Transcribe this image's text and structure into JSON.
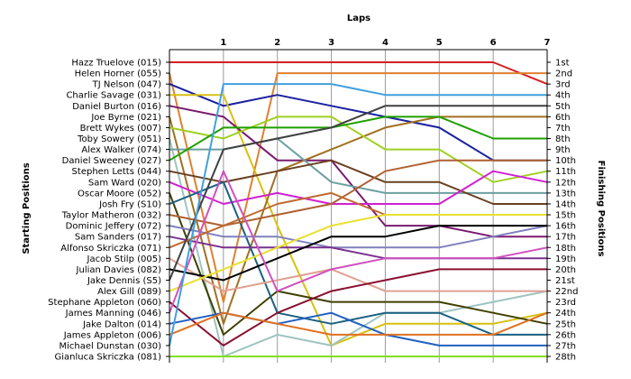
{
  "chart_data": {
    "type": "line",
    "title": "",
    "xlabel": "Laps",
    "ylabel_left": "Starting Positions",
    "ylabel_right": "Finishing Positions",
    "x_ticks": [
      "1",
      "2",
      "3",
      "4",
      "5",
      "6",
      "7"
    ],
    "xlim": [
      0,
      7
    ],
    "ylim": [
      1,
      28
    ],
    "starting_labels": [
      "Hazz Truelove (015)",
      "Helen Horner (055)",
      "TJ Nelson (047)",
      "Charlie Savage (031)",
      "Daniel Burton (016)",
      "Joe Byrne (021)",
      "Brett Wykes (007)",
      "Toby Sowery (051)",
      "Alex Walker (074)",
      "Daniel Sweeney (027)",
      "Stephen Letts (044)",
      "Sam Ward (020)",
      "Oscar Moore (052)",
      "Josh Fry (S10)",
      "Taylor Matheron (032)",
      "Dominic Jeffery (072)",
      "Sam Sanders (017)",
      "Alfonso Skriczka (071)",
      "Jacob Stilp (005)",
      "Julian Davies (082)",
      "Jake Dennis (S5)",
      "Alex Gill (089)",
      "Stephane Appleton (060)",
      "James Manning (046)",
      "Jake Dalton (014)",
      "James Appleton (006)",
      "Michael Dunstan (030)",
      "Gianluca Skriczka (081)"
    ],
    "finishing_labels": [
      "1st",
      "2nd",
      "3rd",
      "4th",
      "5th",
      "6th",
      "7th",
      "8th",
      "9th",
      "10th",
      "11th",
      "12th",
      "13th",
      "14th",
      "15th",
      "16th",
      "17th",
      "18th",
      "19th",
      "20th",
      "21st",
      "22nd",
      "23rd",
      "24th",
      "25th",
      "26th",
      "27th",
      "28th"
    ],
    "grid": true,
    "series": [
      {
        "color": "#d42020",
        "positions": [
          1,
          1,
          1,
          1,
          1,
          1,
          1,
          3
        ]
      },
      {
        "color": "#e08030",
        "positions": [
          2,
          23,
          2,
          2,
          2,
          2,
          2,
          2
        ]
      },
      {
        "color": "#1a20a0",
        "positions": [
          3,
          5,
          4,
          5,
          6,
          7,
          10,
          10
        ]
      },
      {
        "color": "#d8c010",
        "positions": [
          4,
          4,
          16,
          27,
          25,
          25,
          25,
          24
        ]
      },
      {
        "color": "#7a1a70",
        "positions": [
          5,
          6,
          10,
          10,
          16,
          16,
          17,
          17
        ]
      },
      {
        "color": "#a07020",
        "positions": [
          6,
          25,
          11,
          9,
          7,
          6,
          6,
          6
        ]
      },
      {
        "color": "#a0d020",
        "positions": [
          7,
          8,
          6,
          6,
          9,
          9,
          12,
          11
        ]
      },
      {
        "color": "#9ec4c0",
        "positions": [
          8,
          28,
          26,
          27,
          24,
          24,
          23,
          22
        ]
      },
      {
        "color": "#6c9fa0",
        "positions": [
          9,
          9,
          8,
          12,
          13,
          13,
          13,
          13
        ]
      },
      {
        "color": "#20a000",
        "positions": [
          10,
          7,
          7,
          7,
          6,
          6,
          8,
          8
        ]
      },
      {
        "color": "#6a4020",
        "positions": [
          11,
          12,
          11,
          10,
          12,
          12,
          14,
          14
        ]
      },
      {
        "color": "#d020d0",
        "positions": [
          12,
          14,
          13,
          14,
          14,
          14,
          11,
          12
        ]
      },
      {
        "color": "#404000",
        "positions": [
          13,
          26,
          22,
          23,
          23,
          23,
          24,
          25
        ]
      },
      {
        "color": "#1a6080",
        "positions": [
          14,
          12,
          24,
          25,
          24,
          24,
          26,
          26
        ]
      },
      {
        "color": "#b06030",
        "positions": [
          15,
          16,
          15,
          14,
          11,
          10,
          10,
          10
        ]
      },
      {
        "color": "#8080c0",
        "positions": [
          16,
          17,
          17,
          18,
          18,
          18,
          17,
          16
        ]
      },
      {
        "color": "#7a3090",
        "positions": [
          17,
          18,
          18,
          18,
          19,
          19,
          19,
          19
        ]
      },
      {
        "color": "#c06a30",
        "positions": [
          18,
          16,
          14,
          13,
          15,
          15,
          15,
          15
        ]
      },
      {
        "color": "#e0a090",
        "positions": [
          19,
          22,
          21,
          20,
          22,
          22,
          22,
          22
        ]
      },
      {
        "color": "#000000",
        "positions": [
          20,
          21,
          19,
          17,
          17,
          16,
          16,
          16
        ]
      },
      {
        "color": "#404040",
        "positions": [
          21,
          9,
          8,
          7,
          5,
          5,
          5,
          5
        ]
      },
      {
        "color": "#e8e030",
        "positions": [
          22,
          20,
          18,
          16,
          15,
          15,
          15,
          15
        ]
      },
      {
        "color": "#8a1030",
        "positions": [
          23,
          27,
          24,
          22,
          21,
          20,
          20,
          20
        ]
      },
      {
        "color": "#d050c0",
        "positions": [
          24,
          11,
          22,
          20,
          19,
          19,
          19,
          18
        ]
      },
      {
        "color": "#2060c0",
        "positions": [
          25,
          24,
          25,
          24,
          26,
          27,
          27,
          27
        ]
      },
      {
        "color": "#e07020",
        "positions": [
          26,
          24,
          25,
          26,
          26,
          26,
          26,
          24
        ]
      },
      {
        "color": "#40a0e0",
        "positions": [
          27,
          3,
          3,
          3,
          4,
          4,
          4,
          4
        ]
      },
      {
        "color": "#80e020",
        "positions": [
          28,
          28,
          28,
          28,
          28,
          28,
          28,
          28
        ]
      }
    ]
  }
}
